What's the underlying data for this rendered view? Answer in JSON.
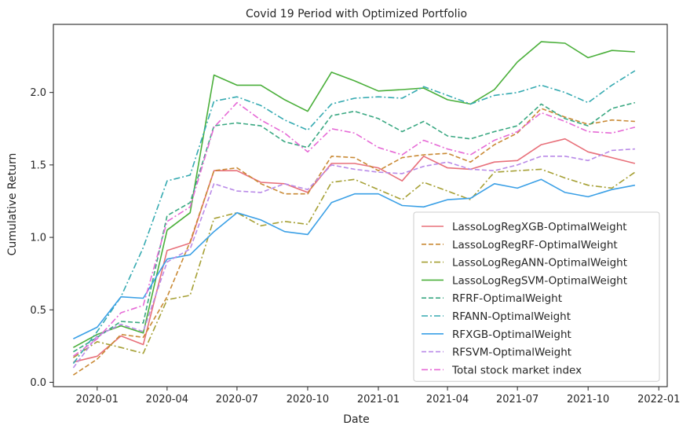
{
  "chart_data": {
    "type": "line",
    "title": "Covid 19 Period with Optimized Portfolio",
    "xlabel": "Date",
    "ylabel": "Cumulative Return",
    "ylim": [
      -0.03,
      2.47
    ],
    "xlim": [
      "2019-11-05",
      "2022-01-12"
    ],
    "x_ticks": [
      "2020-01",
      "2020-04",
      "2020-07",
      "2020-10",
      "2021-01",
      "2021-04",
      "2021-07",
      "2021-10",
      "2022-01"
    ],
    "y_ticks": [
      "0.0",
      "0.5",
      "1.0",
      "1.5",
      "2.0"
    ],
    "y_tick_values": [
      0.0,
      0.5,
      1.0,
      1.5,
      2.0
    ],
    "grid": false,
    "legend_position": "lower right",
    "x": [
      "2019-12-01",
      "2020-01-01",
      "2020-02-01",
      "2020-03-01",
      "2020-04-01",
      "2020-05-01",
      "2020-06-01",
      "2020-07-01",
      "2020-08-01",
      "2020-09-01",
      "2020-10-01",
      "2020-11-01",
      "2020-12-01",
      "2021-01-01",
      "2021-02-01",
      "2021-03-01",
      "2021-04-01",
      "2021-05-01",
      "2021-06-01",
      "2021-07-01",
      "2021-08-01",
      "2021-09-01",
      "2021-10-01",
      "2021-11-01",
      "2021-12-01"
    ],
    "series": [
      {
        "name": "LassoLogRegXGB-OptimalWeight",
        "color": "#e8707a",
        "dash": "solid",
        "values": [
          0.14,
          0.18,
          0.32,
          0.26,
          0.91,
          0.96,
          1.46,
          1.46,
          1.38,
          1.37,
          1.31,
          1.51,
          1.51,
          1.48,
          1.39,
          1.56,
          1.48,
          1.47,
          1.52,
          1.53,
          1.64,
          1.68,
          1.59,
          1.55,
          1.51
        ]
      },
      {
        "name": "LassoLogRegRF-OptimalWeight",
        "color": "#c98a35",
        "dash": "dashed",
        "values": [
          0.05,
          0.16,
          0.33,
          0.31,
          0.59,
          0.97,
          1.46,
          1.48,
          1.37,
          1.3,
          1.3,
          1.56,
          1.55,
          1.46,
          1.55,
          1.57,
          1.58,
          1.52,
          1.64,
          1.72,
          1.89,
          1.83,
          1.78,
          1.81,
          1.8
        ]
      },
      {
        "name": "LassoLogRegANN-OptimalWeight",
        "color": "#a6a035",
        "dash": "dashdot",
        "values": [
          0.17,
          0.28,
          0.24,
          0.2,
          0.57,
          0.6,
          1.13,
          1.17,
          1.08,
          1.11,
          1.09,
          1.38,
          1.4,
          1.33,
          1.26,
          1.38,
          1.32,
          1.26,
          1.45,
          1.46,
          1.47,
          1.41,
          1.36,
          1.34,
          1.45
        ]
      },
      {
        "name": "LassoLogRegSVM-OptimalWeight",
        "color": "#4aaf3a",
        "dash": "solid",
        "values": [
          0.24,
          0.33,
          0.39,
          0.34,
          1.05,
          1.17,
          2.12,
          2.05,
          2.05,
          1.95,
          1.87,
          2.14,
          2.08,
          2.01,
          2.02,
          2.03,
          1.95,
          1.92,
          2.02,
          2.21,
          2.35,
          2.34,
          2.24,
          2.29,
          2.28
        ]
      },
      {
        "name": "RFRF-OptimalWeight",
        "color": "#3aa882",
        "dash": "dashed",
        "values": [
          0.21,
          0.31,
          0.42,
          0.41,
          1.15,
          1.24,
          1.77,
          1.79,
          1.77,
          1.66,
          1.62,
          1.84,
          1.87,
          1.82,
          1.73,
          1.8,
          1.7,
          1.68,
          1.73,
          1.77,
          1.92,
          1.82,
          1.77,
          1.89,
          1.93
        ]
      },
      {
        "name": "RFANN-OptimalWeight",
        "color": "#35aab1",
        "dash": "dashdot",
        "values": [
          0.13,
          0.35,
          0.59,
          0.93,
          1.39,
          1.43,
          1.94,
          1.97,
          1.91,
          1.81,
          1.74,
          1.92,
          1.96,
          1.97,
          1.96,
          2.04,
          1.98,
          1.92,
          1.98,
          2.0,
          2.05,
          2.0,
          1.93,
          2.05,
          2.15
        ]
      },
      {
        "name": "RFXGB-OptimalWeight",
        "color": "#3ba0e6",
        "dash": "solid",
        "values": [
          0.3,
          0.38,
          0.59,
          0.58,
          0.85,
          0.88,
          1.04,
          1.17,
          1.12,
          1.04,
          1.02,
          1.24,
          1.3,
          1.3,
          1.22,
          1.21,
          1.26,
          1.27,
          1.37,
          1.34,
          1.4,
          1.31,
          1.28,
          1.33,
          1.36
        ]
      },
      {
        "name": "RFSVM-OptimalWeight",
        "color": "#b98ae8",
        "dash": "dashed",
        "values": [
          0.1,
          0.32,
          0.4,
          0.35,
          0.83,
          0.92,
          1.37,
          1.32,
          1.31,
          1.37,
          1.33,
          1.5,
          1.47,
          1.45,
          1.44,
          1.49,
          1.52,
          1.47,
          1.46,
          1.5,
          1.56,
          1.56,
          1.53,
          1.6,
          1.61
        ]
      },
      {
        "name": "Total stock market index",
        "color": "#e66ad6",
        "dash": "dashdot",
        "values": [
          0.18,
          0.3,
          0.48,
          0.53,
          1.11,
          1.21,
          1.76,
          1.93,
          1.81,
          1.72,
          1.59,
          1.75,
          1.72,
          1.62,
          1.57,
          1.67,
          1.61,
          1.57,
          1.67,
          1.73,
          1.86,
          1.8,
          1.73,
          1.72,
          1.76
        ]
      }
    ]
  }
}
